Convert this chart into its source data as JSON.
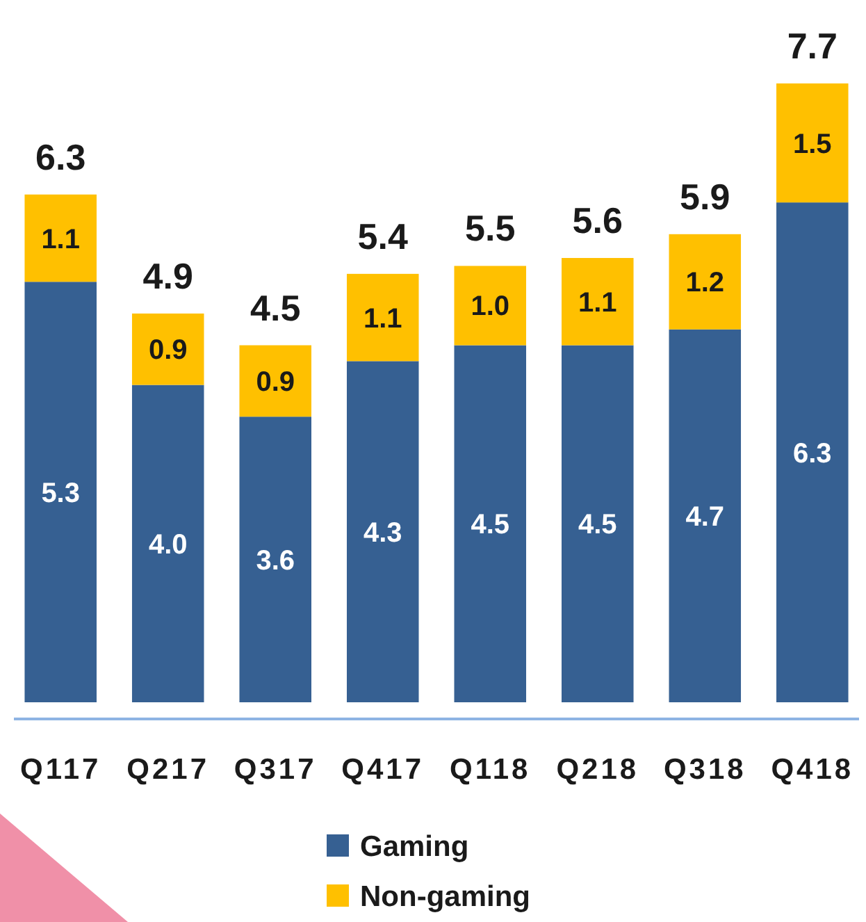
{
  "chart_data": {
    "type": "bar",
    "stacked": true,
    "categories": [
      "Q117",
      "Q217",
      "Q317",
      "Q417",
      "Q118",
      "Q218",
      "Q318",
      "Q418"
    ],
    "series": [
      {
        "name": "Gaming",
        "color": "#366092",
        "values": [
          5.3,
          4.0,
          3.6,
          4.3,
          4.5,
          4.5,
          4.7,
          6.3
        ],
        "value_labels": [
          "5.3",
          "4.0",
          "3.6",
          "4.3",
          "4.5",
          "4.5",
          "4.7",
          "6.3"
        ]
      },
      {
        "name": "Non-gaming",
        "color": "#ffc000",
        "values": [
          1.1,
          0.9,
          0.9,
          1.1,
          1.0,
          1.1,
          1.2,
          1.5
        ],
        "value_labels": [
          "1.1",
          "0.9",
          "0.9",
          "1.1",
          "1.0",
          "1.1",
          "1.2",
          "1.5"
        ]
      }
    ],
    "totals": [
      "6.3",
      "4.9",
      "4.5",
      "5.4",
      "5.5",
      "5.6",
      "5.9",
      "7.7"
    ],
    "legend": "bottom"
  }
}
